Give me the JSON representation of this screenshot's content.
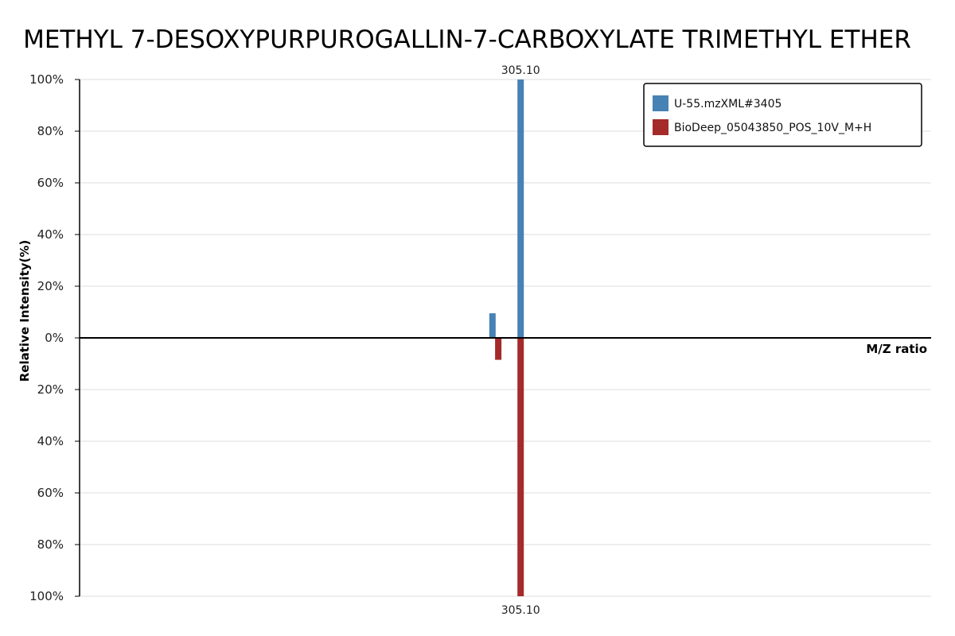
{
  "chart_data": {
    "type": "bar",
    "title": "METHYL 7-DESOXYPURPUROGALLIN-7-CARBOXYLATE TRIMETHYL ETHER",
    "xlabel": "M/Z ratio",
    "ylabel": "Relative Intensity(%)",
    "ylim": [
      -100,
      100
    ],
    "xlim": [
      230,
      375
    ],
    "yticks": [
      {
        "value": 100,
        "label": "100%"
      },
      {
        "value": 80,
        "label": "80%"
      },
      {
        "value": 60,
        "label": "60%"
      },
      {
        "value": 40,
        "label": "40%"
      },
      {
        "value": 20,
        "label": "20%"
      },
      {
        "value": 0,
        "label": "0%"
      },
      {
        "value": -20,
        "label": "20%"
      },
      {
        "value": -40,
        "label": "40%"
      },
      {
        "value": -60,
        "label": "60%"
      },
      {
        "value": -80,
        "label": "80%"
      },
      {
        "value": -100,
        "label": "100%"
      }
    ],
    "grid": true,
    "legend_position": "top-right",
    "series": [
      {
        "name": "U-55.mzXML#3405",
        "color": "#4682b4",
        "direction": "up",
        "peaks": [
          {
            "mz": 300.3,
            "intensity": 9.5
          },
          {
            "mz": 305.1,
            "intensity": 100,
            "label": "305.10"
          }
        ]
      },
      {
        "name": "BioDeep_05043850_POS_10V_M+H",
        "color": "#a52a2a",
        "direction": "down",
        "peaks": [
          {
            "mz": 301.3,
            "intensity": 8.5
          },
          {
            "mz": 305.1,
            "intensity": 100,
            "label": "305.10"
          }
        ]
      }
    ]
  }
}
